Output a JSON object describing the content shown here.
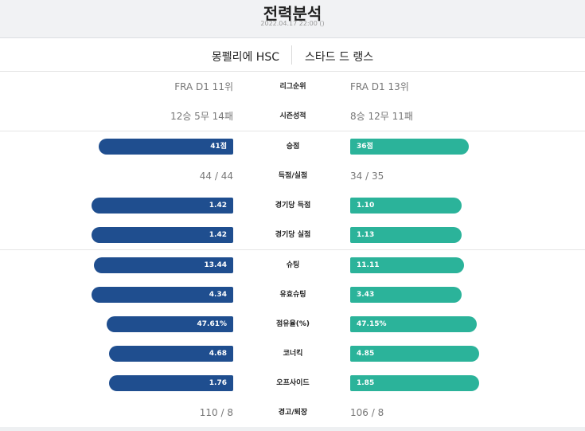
{
  "header": {
    "title": "전력분석",
    "datetime": "2022.04.17 22:00 ()"
  },
  "teams": {
    "home": "몽펠리에 HSC",
    "away": "스타드 드 랭스"
  },
  "text_rows": {
    "league_rank": {
      "label": "리그순위",
      "home": "FRA D1 11위",
      "away": "FRA D1 13위"
    },
    "season_record": {
      "label": "시즌성적",
      "home": "12승 5무 14패",
      "away": "8승 12무 11패"
    },
    "goals_for_against": {
      "label": "득점/실점",
      "home": "44 / 44",
      "away": "34 / 35"
    },
    "warnings_ejections": {
      "label": "경고/퇴장",
      "home": "110 / 8",
      "away": "106 / 8"
    }
  },
  "bar_rows": {
    "points": {
      "label": "승점",
      "home": "41점",
      "away": "36점",
      "home_share": 0.53,
      "away_share": 0.47
    },
    "goals_per_game": {
      "label": "경기당 득점",
      "home": "1.42",
      "away": "1.10",
      "home_share": 0.56,
      "away_share": 0.44
    },
    "conceded_per_game": {
      "label": "경기당 실점",
      "home": "1.42",
      "away": "1.13",
      "home_share": 0.56,
      "away_share": 0.44
    },
    "shots": {
      "label": "슈팅",
      "home": "13.44",
      "away": "11.11",
      "home_share": 0.55,
      "away_share": 0.45
    },
    "shots_on_target": {
      "label": "유효슈팅",
      "home": "4.34",
      "away": "3.43",
      "home_share": 0.56,
      "away_share": 0.44
    },
    "possession": {
      "label": "점유율(%)",
      "home": "47.61%",
      "away": "47.15%",
      "home_share": 0.5,
      "away_share": 0.5
    },
    "corners": {
      "label": "코너킥",
      "home": "4.68",
      "away": "4.85",
      "home_share": 0.49,
      "away_share": 0.51
    },
    "offsides": {
      "label": "오프사이드",
      "home": "1.76",
      "away": "1.85",
      "home_share": 0.49,
      "away_share": 0.51
    }
  },
  "colors": {
    "home_bar": "#1f4e8f",
    "away_bar": "#2bb39a"
  }
}
